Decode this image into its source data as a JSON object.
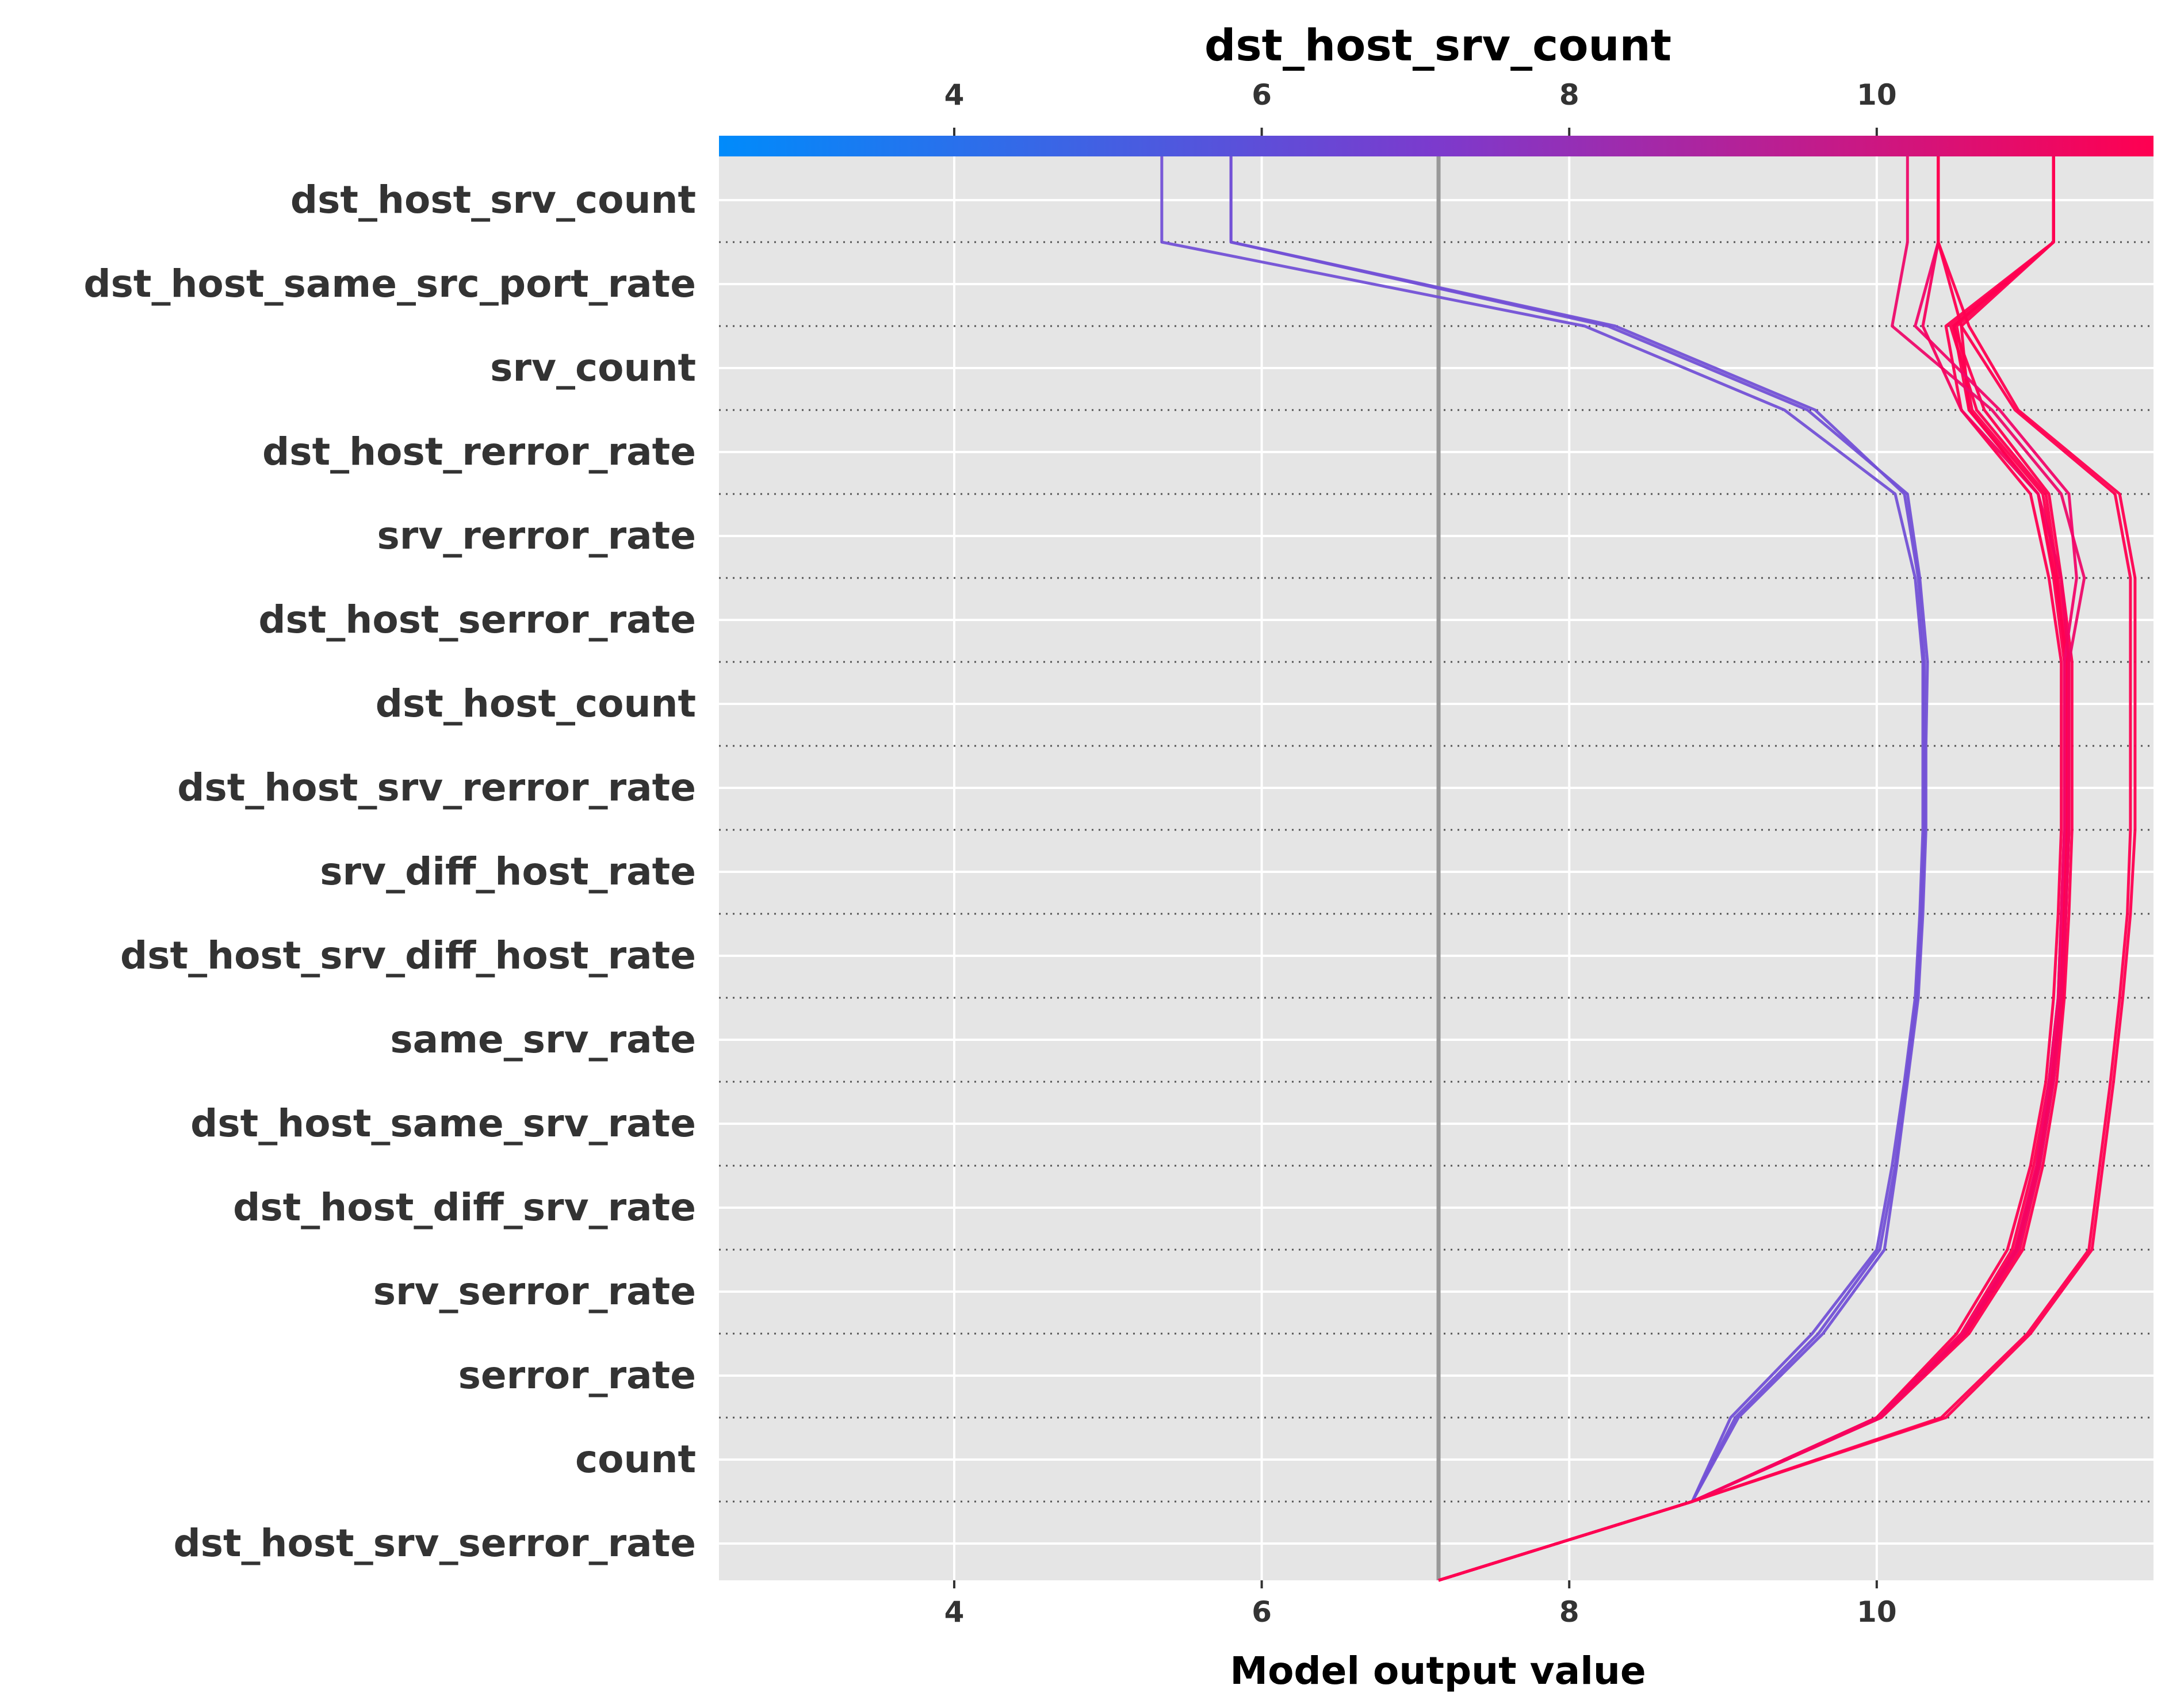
{
  "chart_data": {
    "type": "line",
    "subtype": "decision-plot",
    "title": "dst_host_srv_count",
    "xlabel": "Model output value",
    "xlim": [
      2.47,
      11.8
    ],
    "x_ticks": [
      4,
      6,
      8,
      10
    ],
    "base_value": 7.15,
    "colorbar": {
      "label": "dst_host_srv_count",
      "ticks": [
        4,
        6,
        8,
        10
      ],
      "range": [
        2.47,
        11.8
      ],
      "color_low": "#008bfb",
      "color_mid": "#7c3acd",
      "color_high": "#ff0051"
    },
    "features": [
      "dst_host_srv_count",
      "dst_host_same_src_port_rate",
      "srv_count",
      "dst_host_rerror_rate",
      "srv_rerror_rate",
      "dst_host_serror_rate",
      "dst_host_count",
      "dst_host_srv_rerror_rate",
      "srv_diff_host_rate",
      "dst_host_srv_diff_host_rate",
      "same_srv_rate",
      "dst_host_same_srv_rate",
      "dst_host_diff_srv_rate",
      "srv_serror_rate",
      "serror_rate",
      "count",
      "dst_host_srv_serror_rate"
    ],
    "series_note_order": "cumulative model output from bottom (base value) to top (final prediction), points listed top to bottom",
    "series": [
      {
        "color": "#7351d6",
        "values": [
          5.35,
          8.1,
          9.4,
          10.12,
          10.25,
          10.3,
          10.3,
          10.3,
          10.28,
          10.25,
          10.18,
          10.1,
          10.0,
          9.58,
          9.05,
          8.8,
          7.15
        ]
      },
      {
        "color": "#7351d6",
        "values": [
          5.8,
          8.25,
          9.55,
          10.2,
          10.28,
          10.33,
          10.32,
          10.32,
          10.3,
          10.27,
          10.2,
          10.13,
          10.05,
          9.65,
          9.1,
          8.8,
          7.15
        ]
      },
      {
        "color": "#7351d6",
        "values": [
          5.8,
          8.3,
          9.6,
          10.18,
          10.27,
          10.31,
          10.31,
          10.31,
          10.29,
          10.26,
          10.19,
          10.12,
          10.02,
          9.62,
          9.08,
          8.8,
          7.15
        ]
      },
      {
        "color": "#ff0051",
        "values": [
          11.15,
          10.55,
          10.6,
          11.05,
          11.15,
          11.22,
          11.22,
          11.22,
          11.2,
          11.18,
          11.12,
          11.02,
          10.88,
          10.55,
          10.0,
          8.8,
          7.15
        ]
      },
      {
        "color": "#ff0051",
        "values": [
          11.15,
          10.45,
          10.55,
          11.0,
          11.12,
          11.2,
          11.2,
          11.2,
          11.18,
          11.15,
          11.1,
          11.0,
          10.85,
          10.52,
          10.0,
          8.8,
          7.15
        ]
      },
      {
        "color": "#ff0051",
        "values": [
          11.15,
          10.5,
          10.6,
          11.05,
          11.16,
          11.24,
          11.24,
          11.24,
          11.22,
          11.2,
          11.14,
          11.05,
          10.92,
          10.58,
          10.02,
          8.8,
          7.15
        ]
      },
      {
        "color": "#ff0051",
        "values": [
          11.15,
          10.48,
          10.65,
          11.1,
          11.18,
          11.25,
          11.25,
          11.25,
          11.23,
          11.21,
          11.15,
          11.06,
          10.93,
          10.58,
          10.02,
          8.8,
          7.15
        ]
      },
      {
        "color": "#ff0051",
        "values": [
          11.15,
          10.52,
          10.62,
          11.08,
          11.17,
          11.23,
          11.23,
          11.23,
          11.21,
          11.19,
          11.13,
          11.04,
          10.9,
          10.56,
          10.01,
          8.8,
          7.15
        ]
      },
      {
        "color": "#ff0051",
        "values": [
          11.15,
          10.5,
          10.7,
          11.12,
          11.2,
          11.27,
          11.27,
          11.27,
          11.25,
          11.22,
          11.17,
          11.08,
          10.95,
          10.6,
          10.03,
          8.8,
          7.15
        ]
      },
      {
        "color": "#ee0a6a",
        "values": [
          10.2,
          10.1,
          10.75,
          11.2,
          11.35,
          11.25,
          11.25,
          11.25,
          11.23,
          11.2,
          11.15,
          11.06,
          10.92,
          10.57,
          10.02,
          8.8,
          7.15
        ]
      },
      {
        "color": "#f2066a",
        "values": [
          10.4,
          10.25,
          10.8,
          11.25,
          11.3,
          11.22,
          11.22,
          11.22,
          11.2,
          11.18,
          11.12,
          11.04,
          10.9,
          10.56,
          10.01,
          8.8,
          7.15
        ]
      },
      {
        "color": "#f5035f",
        "values": [
          10.4,
          10.3,
          10.55,
          11.05,
          11.2,
          11.25,
          11.25,
          11.25,
          11.23,
          11.2,
          11.14,
          11.05,
          10.91,
          10.57,
          10.02,
          8.8,
          7.15
        ]
      },
      {
        "color": "#ff0051",
        "values": [
          10.4,
          10.55,
          10.9,
          11.55,
          11.65,
          11.65,
          11.65,
          11.65,
          11.63,
          11.58,
          11.52,
          11.45,
          11.38,
          10.98,
          10.42,
          8.8,
          7.15
        ]
      },
      {
        "color": "#ff0051",
        "values": [
          10.4,
          10.6,
          10.92,
          11.58,
          11.68,
          11.68,
          11.68,
          11.68,
          11.65,
          11.6,
          11.54,
          11.47,
          11.4,
          11.0,
          10.45,
          8.8,
          7.15
        ]
      }
    ]
  }
}
